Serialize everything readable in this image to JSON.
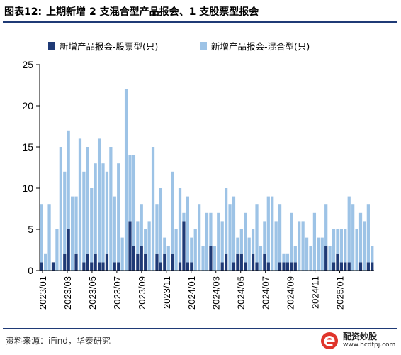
{
  "header": {
    "figure_number": "图表12:",
    "title": "上期新增 2 支混合型产品报会、1 支股票型报会"
  },
  "footer": {
    "source": "资料来源：iFind，华泰研究",
    "logo_name": "配资炒股",
    "logo_url": "www.hcdtpj.com"
  },
  "colors": {
    "stock_series": "#1f3a76",
    "hybrid_series": "#9dc3e6",
    "logo_accent": "#e0352b"
  },
  "chart_data": {
    "type": "bar",
    "stacked": true,
    "ylim": [
      0,
      25
    ],
    "yticks": [
      0,
      5,
      10,
      15,
      20,
      25
    ],
    "grid": false,
    "legend_position": "top",
    "x_label_dates": [
      "2023/01",
      "2023/03",
      "2023/05",
      "2023/07",
      "2023/09",
      "2023/11",
      "2024/01",
      "2024/03",
      "2024/05",
      "2024/07",
      "2024/09",
      "2024/11",
      "2025/01"
    ],
    "series": [
      {
        "name": "新增产品报会-股票型(只)",
        "color_key": "stock_series",
        "values": [
          1,
          0,
          0,
          1,
          0,
          0,
          2,
          5,
          0,
          2,
          0,
          1,
          2,
          1,
          2,
          1,
          1,
          2,
          0,
          1,
          1,
          0,
          0,
          6,
          3,
          2,
          3,
          2,
          0,
          0,
          2,
          1,
          2,
          0,
          2,
          0,
          1,
          6,
          1,
          1,
          0,
          0,
          0,
          0,
          3,
          0,
          0,
          1,
          2,
          0,
          1,
          2,
          2,
          1,
          0,
          2,
          1,
          0,
          2,
          1,
          0,
          0,
          1,
          1,
          1,
          1,
          1,
          0,
          0,
          0,
          0,
          0,
          0,
          0,
          3,
          0,
          1,
          2,
          1,
          1,
          1,
          0,
          0,
          1,
          0,
          1,
          1
        ]
      },
      {
        "name": "新增产品报会-混合型(只)",
        "color_key": "hybrid_series",
        "values": [
          7,
          2,
          8,
          0,
          5,
          15,
          10,
          12,
          9,
          7,
          16,
          11,
          13,
          9,
          11,
          15,
          12,
          10,
          15,
          8,
          12,
          4,
          22,
          8,
          11,
          4,
          5,
          3,
          6,
          15,
          6,
          9,
          2,
          3,
          10,
          5,
          9,
          1,
          8,
          3,
          5,
          8,
          3,
          7,
          4,
          3,
          7,
          5,
          8,
          8,
          8,
          2,
          3,
          6,
          4,
          3,
          7,
          3,
          4,
          8,
          9,
          6,
          7,
          1,
          1,
          6,
          2,
          6,
          6,
          4,
          3,
          7,
          4,
          4,
          5,
          3,
          4,
          3,
          4,
          4,
          8,
          8,
          5,
          6,
          6,
          7,
          2
        ]
      }
    ]
  }
}
